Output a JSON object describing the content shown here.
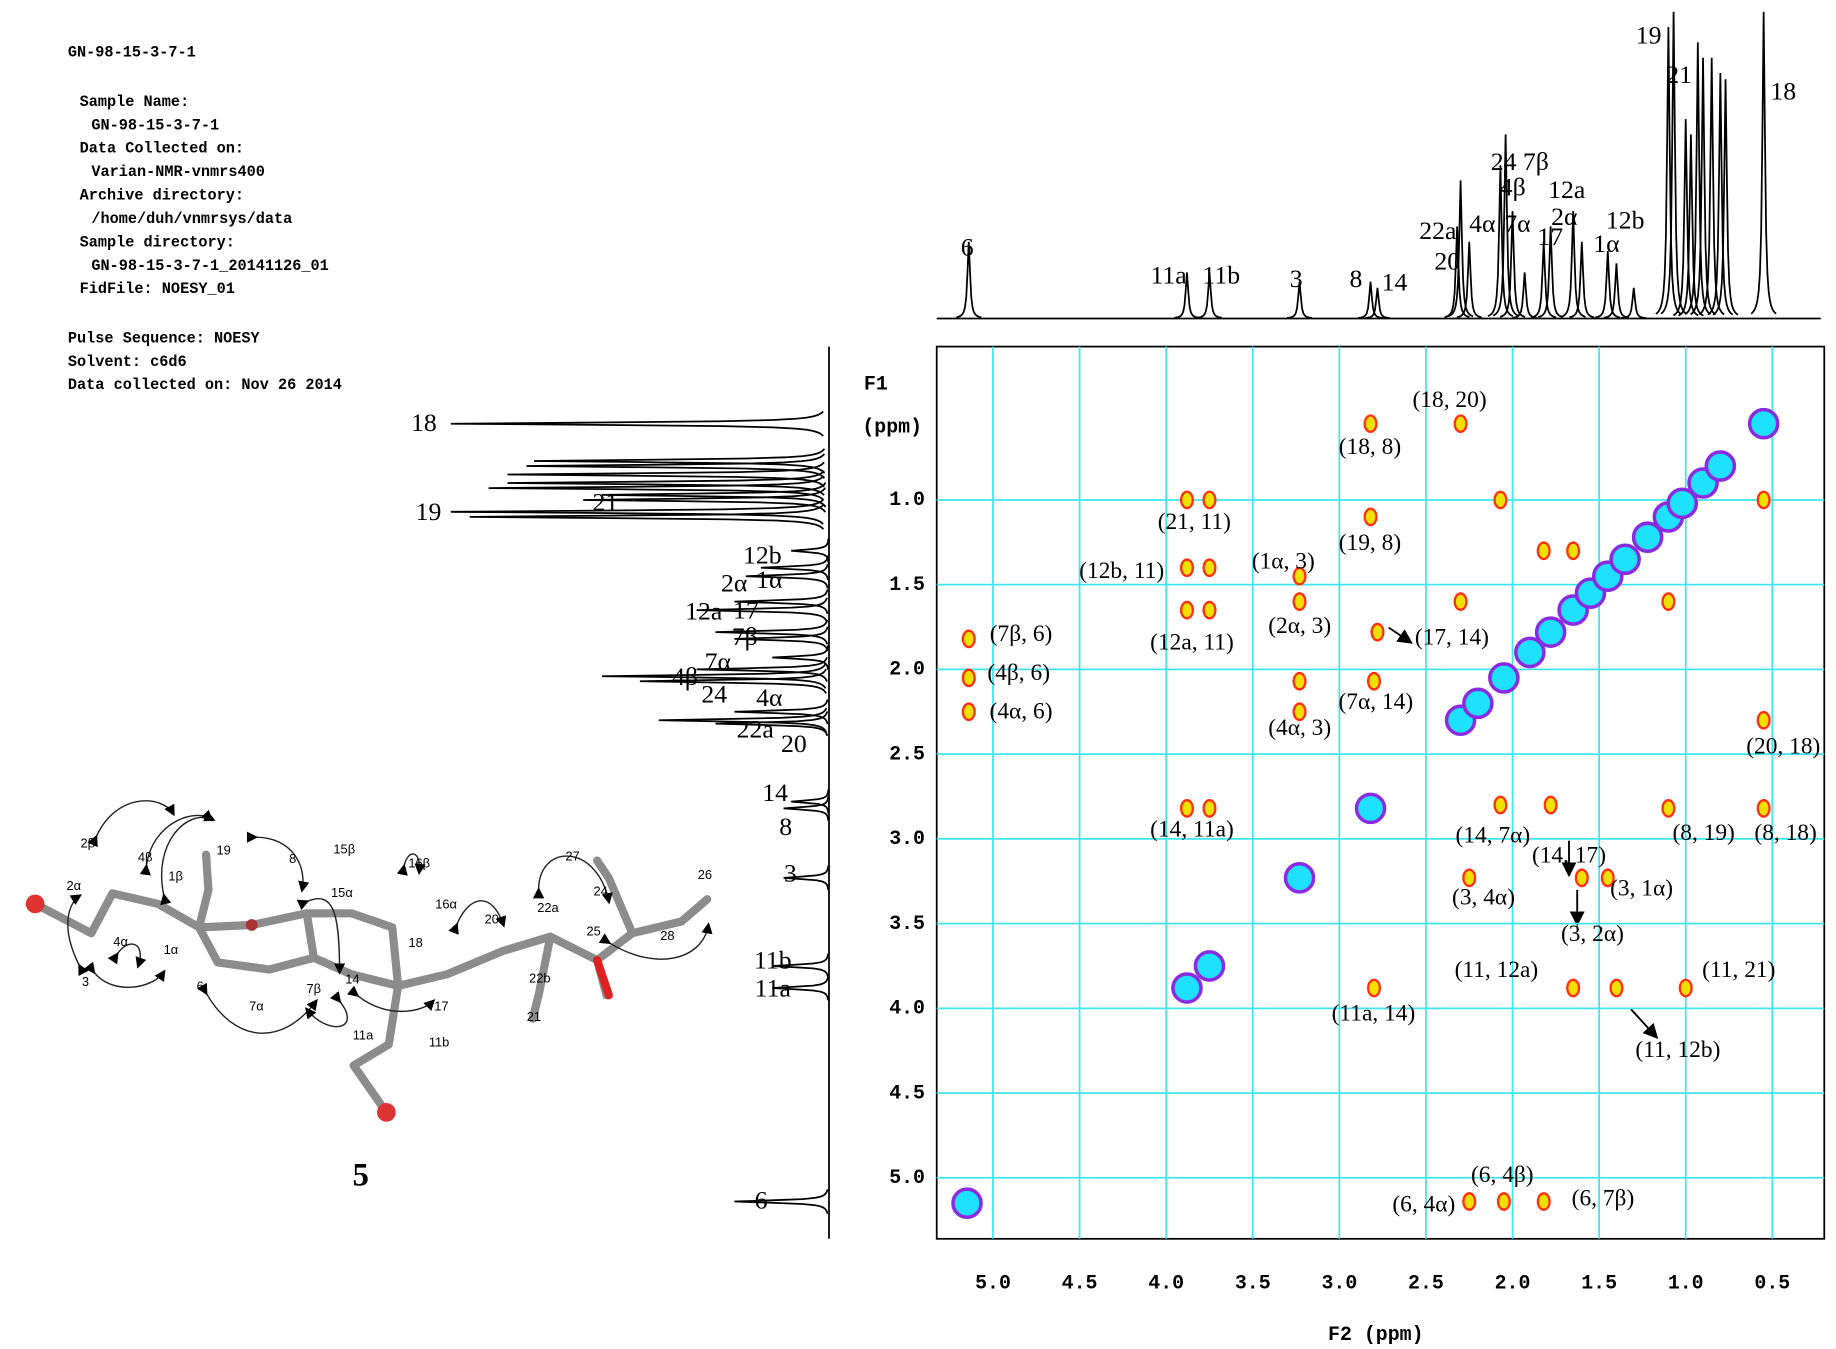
{
  "header": {
    "lines": [
      "GN-98-15-3-7-1",
      "Sample Name:",
      "GN-98-15-3-7-1",
      "Data Collected on:",
      "Varian-NMR-vnmrs400",
      "Archive directory:",
      "/home/duh/vnmrsys/data",
      "Sample directory:",
      "GN-98-15-3-7-1_20141126_01",
      "FidFile: NOESY_01",
      "Pulse Sequence: NOESY",
      "Solvent: c6d6",
      "Data collected on: Nov 26 2014"
    ]
  },
  "chart_data": {
    "type": "noesy",
    "xlabel": "F2 (ppm)",
    "ylabel": "F1",
    "ylabel_unit": "(ppm)",
    "xlim": [
      5.325,
      0.2
    ],
    "ylim": [
      0.095,
      5.36
    ],
    "xticks": [
      {
        "value": 5,
        "label": "5.0"
      },
      4.5,
      {
        "value": 4,
        "label": "4.0"
      },
      3.5,
      {
        "value": 3,
        "label": "3.0"
      },
      2.5,
      {
        "value": 2,
        "label": "2.0"
      },
      1.5,
      {
        "value": 1,
        "label": "1.0"
      },
      0.5
    ],
    "yticks": [
      {
        "value": 1,
        "label": "1.0"
      },
      1.5,
      {
        "value": 2,
        "label": "2.0"
      },
      2.5,
      {
        "value": 3,
        "label": "3.0"
      },
      3.5,
      {
        "value": 4,
        "label": "4.0"
      },
      4.5,
      {
        "value": 5,
        "label": "5.0"
      }
    ],
    "grid": true,
    "grid_color": "#3fe6f0",
    "series": [
      {
        "color": "#1ee0ff",
        "x": [
          5.15,
          3.88,
          3.75,
          3.23,
          2.82,
          2.3,
          2.2,
          2.05,
          1.9,
          1.78,
          1.65,
          1.55,
          1.45,
          1.35,
          1.22,
          1.1,
          1.02,
          0.9,
          0.8,
          0.55
        ],
        "y": [
          5.15,
          3.88,
          3.75,
          3.23,
          2.82,
          2.3,
          2.2,
          2.05,
          1.9,
          1.78,
          1.65,
          1.55,
          1.45,
          1.35,
          1.22,
          1.1,
          1.02,
          0.9,
          0.8,
          0.55
        ]
      },
      {
        "color": "#f0e000",
        "x": [
          5.14,
          5.14,
          5.14,
          3.88,
          3.75,
          3.88,
          3.75,
          3.88,
          3.75,
          3.88,
          3.75,
          3.23,
          3.23,
          3.23,
          3.23,
          2.82,
          2.82,
          2.78,
          2.8,
          2.8,
          2.3,
          2.07,
          1.78,
          2.25,
          1.45,
          1.6,
          1.65,
          1.4,
          1.0,
          2.25,
          2.05,
          1.82,
          1.1,
          0.55,
          0.55,
          0.55,
          2.07,
          2.3,
          1.82,
          1.1,
          1.65
        ],
        "y": [
          1.82,
          2.05,
          2.25,
          1.4,
          1.4,
          1.0,
          1.0,
          1.65,
          1.65,
          2.82,
          2.82,
          1.45,
          1.6,
          2.25,
          2.07,
          0.55,
          1.1,
          1.78,
          2.07,
          3.88,
          0.55,
          2.8,
          2.8,
          3.23,
          3.23,
          3.23,
          3.88,
          3.88,
          3.88,
          5.14,
          5.14,
          5.14,
          2.82,
          2.82,
          2.3,
          1.0,
          1.0,
          1.6,
          1.3,
          1.6,
          1.3
        ]
      }
    ],
    "annotations": [
      "(18, 20)",
      "(18, 8)",
      "(21, 11)",
      "(19, 8)",
      "(1α, 3)",
      "(12b, 11)",
      "(2α, 3)",
      "(17, 14)",
      "(12a, 11)",
      "(7β, 6)",
      "(4β, 6)",
      "(4α, 6)",
      "(7α, 14)",
      "(4α, 3)",
      "(20, 18)",
      "(14, 11a)",
      "(14, 7α)",
      "(8, 19)",
      "(8, 18)",
      "(14, 17)",
      "(3, 1α)",
      "(3, 4α)",
      "(3, 2α)",
      "(11, 12a)",
      "(11, 21)",
      "(11a, 14)",
      "(11, 12b)",
      "(6, 4β)",
      "(6, 4α)",
      "(6, 7β)"
    ],
    "projection": {
      "color": "#000000",
      "x": [
        5.14,
        3.88,
        3.75,
        3.23,
        2.82,
        2.78,
        2.32,
        2.3,
        2.25,
        2.07,
        2.04,
        2.0,
        1.93,
        1.82,
        1.78,
        1.65,
        1.6,
        1.45,
        1.4,
        1.3,
        1.1,
        1.07,
        1.0,
        0.97,
        0.93,
        0.9,
        0.85,
        0.8,
        0.77,
        0.55
      ],
      "intensity": [
        25,
        15,
        15,
        12,
        12,
        10,
        30,
        45,
        25,
        50,
        60,
        35,
        15,
        25,
        30,
        35,
        25,
        22,
        18,
        10,
        95,
        100,
        65,
        60,
        90,
        85,
        85,
        80,
        78,
        100
      ]
    },
    "proton_labels_top": [
      "6",
      "11a",
      "11b",
      "3",
      "8",
      "14",
      "22a",
      "20",
      "4α",
      "7α",
      "24 7β",
      "4β",
      "17",
      "12a",
      "2α",
      "12b",
      "1α",
      "19",
      "21",
      "18"
    ],
    "proton_labels_left": [
      "18",
      "19",
      "21",
      "12b",
      "2α",
      "1α",
      "12a",
      "17",
      "7β",
      "4β",
      "7α",
      "24",
      "4α",
      "22a",
      "20",
      "14",
      "8",
      "3",
      "11b",
      "11a",
      "6"
    ]
  },
  "molecule": {
    "compound": "5",
    "atoms": [
      "2β",
      "4β",
      "1β",
      "19",
      "2α",
      "4α",
      "1α",
      "3",
      "8",
      "15β",
      "15α",
      "16β",
      "16α",
      "18",
      "20",
      "14",
      "6",
      "7α",
      "7β",
      "17",
      "11a",
      "11b",
      "22a",
      "22b",
      "21",
      "27",
      "24",
      "25",
      "26",
      "28"
    ]
  }
}
